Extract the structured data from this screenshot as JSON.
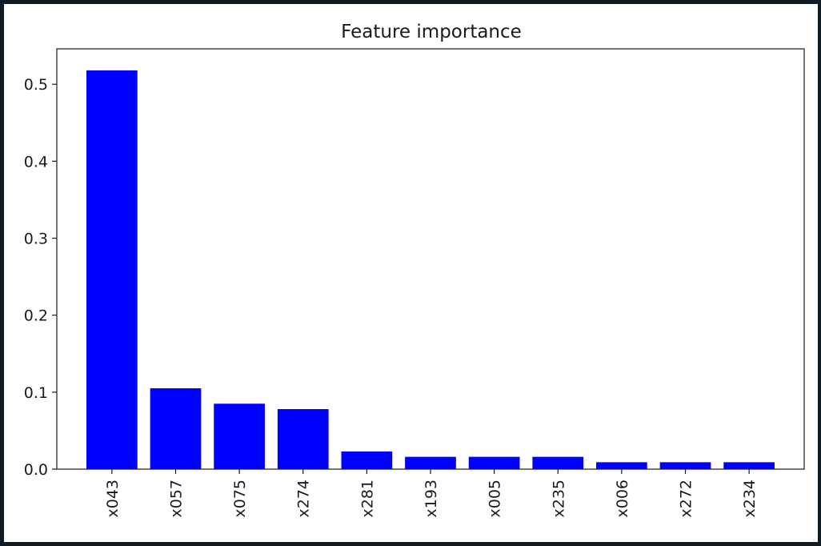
{
  "chart_data": {
    "type": "bar",
    "title": "Feature importance",
    "xlabel": "",
    "ylabel": "",
    "categories": [
      "x043",
      "x057",
      "x075",
      "x274",
      "x281",
      "x193",
      "x005",
      "x235",
      "x006",
      "x272",
      "x234"
    ],
    "values": [
      0.518,
      0.105,
      0.085,
      0.078,
      0.023,
      0.016,
      0.016,
      0.016,
      0.009,
      0.009,
      0.009
    ],
    "ylim": [
      0,
      0.546
    ],
    "yticks": [
      0.0,
      0.1,
      0.2,
      0.3,
      0.4,
      0.5
    ],
    "ytick_labels": [
      "0.0",
      "0.1",
      "0.2",
      "0.3",
      "0.4",
      "0.5"
    ],
    "bar_color": "#0000ff",
    "grid": false,
    "legend": "none"
  }
}
